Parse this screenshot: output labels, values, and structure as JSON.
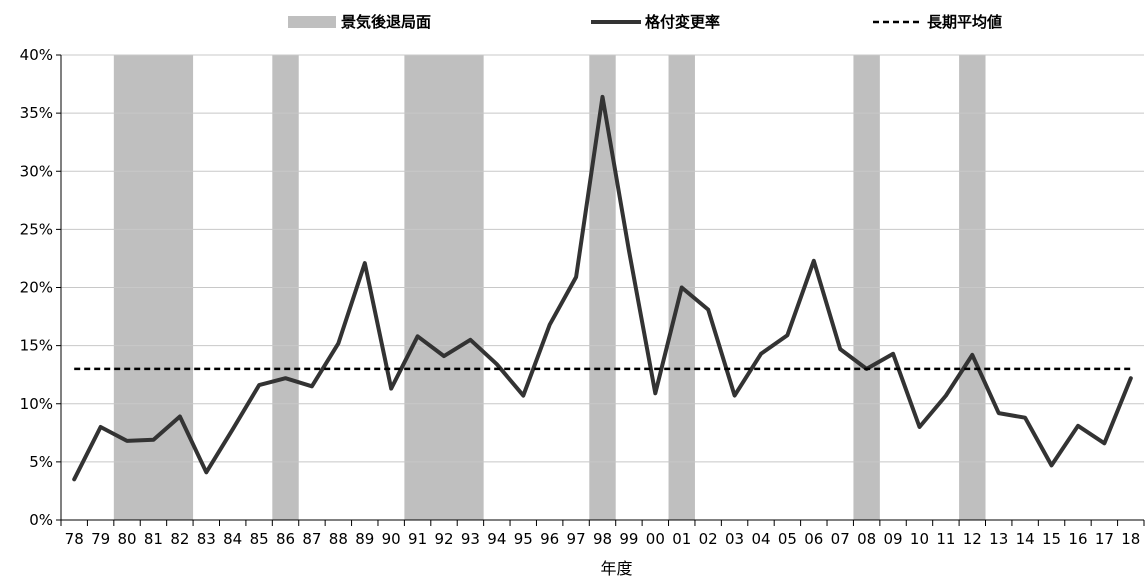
{
  "chart_data": {
    "type": "line",
    "title": "",
    "xlabel": "年度",
    "ylabel": "",
    "ylim": [
      0,
      0.4
    ],
    "y_ticks": [
      0,
      0.05,
      0.1,
      0.15,
      0.2,
      0.25,
      0.3,
      0.35,
      0.4
    ],
    "y_tick_labels": [
      "0%",
      "5%",
      "10%",
      "15%",
      "20%",
      "25%",
      "30%",
      "35%",
      "40%"
    ],
    "grid": true,
    "legend_position": "top",
    "categories": [
      "78",
      "79",
      "80",
      "81",
      "82",
      "83",
      "84",
      "85",
      "86",
      "87",
      "88",
      "89",
      "90",
      "91",
      "92",
      "93",
      "94",
      "95",
      "96",
      "97",
      "98",
      "99",
      "00",
      "01",
      "02",
      "03",
      "04",
      "05",
      "06",
      "07",
      "08",
      "09",
      "10",
      "11",
      "12",
      "13",
      "14",
      "15",
      "16",
      "17",
      "18"
    ],
    "legend": [
      {
        "label": "景気後退局面",
        "style": "bar",
        "color": "#bfbfbf"
      },
      {
        "label": "格付変更率",
        "style": "line",
        "color": "#333333"
      },
      {
        "label": "長期平均値",
        "style": "dashed",
        "color": "#000000"
      }
    ],
    "recession_periods": [
      [
        "80",
        "82"
      ],
      [
        "86",
        "86"
      ],
      [
        "91",
        "93"
      ],
      [
        "98",
        "98"
      ],
      [
        "01",
        "01"
      ],
      [
        "08",
        "08"
      ],
      [
        "12",
        "12"
      ]
    ],
    "series": [
      {
        "name": "格付変更率",
        "values": [
          0.035,
          0.08,
          0.068,
          0.069,
          0.089,
          0.041,
          0.078,
          0.116,
          0.122,
          0.115,
          0.152,
          0.221,
          0.113,
          0.158,
          0.141,
          0.155,
          0.134,
          0.107,
          0.168,
          0.209,
          0.364,
          0.232,
          0.109,
          0.2,
          0.181,
          0.107,
          0.143,
          0.159,
          0.223,
          0.147,
          0.13,
          0.143,
          0.08,
          0.107,
          0.142,
          0.092,
          0.088,
          0.047,
          0.081,
          0.066,
          0.122
        ]
      },
      {
        "name": "長期平均値",
        "values": [
          0.13,
          0.13,
          0.13,
          0.13,
          0.13,
          0.13,
          0.13,
          0.13,
          0.13,
          0.13,
          0.13,
          0.13,
          0.13,
          0.13,
          0.13,
          0.13,
          0.13,
          0.13,
          0.13,
          0.13,
          0.13,
          0.13,
          0.13,
          0.13,
          0.13,
          0.13,
          0.13,
          0.13,
          0.13,
          0.13,
          0.13,
          0.13,
          0.13,
          0.13,
          0.13,
          0.13,
          0.13,
          0.13,
          0.13,
          0.13,
          0.13
        ]
      }
    ]
  }
}
